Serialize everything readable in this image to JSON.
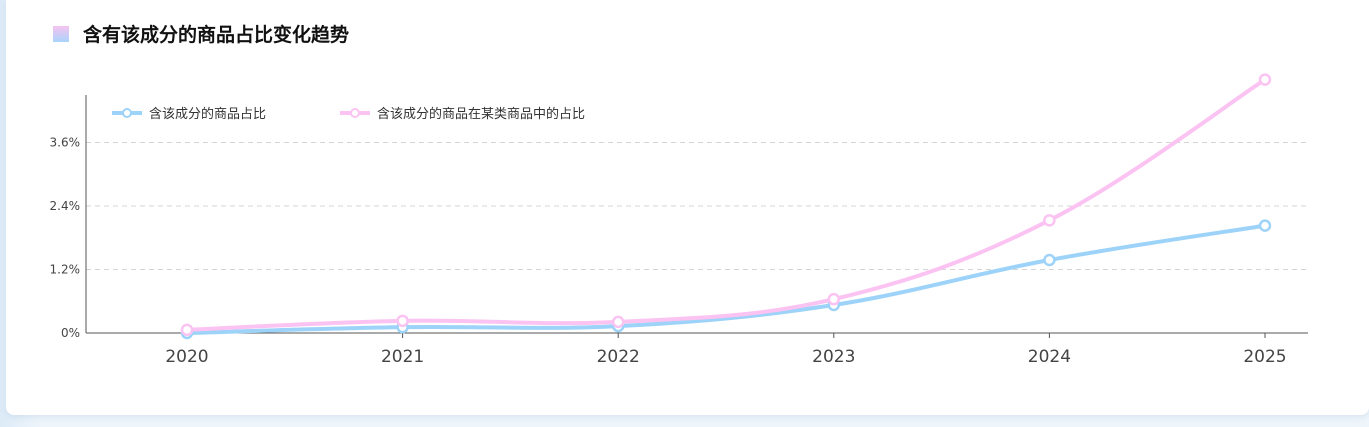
{
  "title": "含有该成分的商品占比变化趋势",
  "chart_data": {
    "type": "line",
    "smooth": true,
    "title": "含有该成分的商品占比变化趋势",
    "categories": [
      "2020",
      "2021",
      "2022",
      "2023",
      "2024",
      "2025"
    ],
    "y_ticks": [
      "0%",
      "1.2%",
      "2.4%",
      "3.6%"
    ],
    "y_tick_values": [
      0,
      1.2,
      2.4,
      3.6
    ],
    "ylim": [
      0,
      4.5
    ],
    "y_unit": "%",
    "grid": "horizontal dashed",
    "legend_position": "top-left",
    "series": [
      {
        "name": "含该成分的商品占比",
        "color": "#9dd3f9",
        "values": [
          0.0,
          0.11,
          0.13,
          0.53,
          1.38,
          2.03
        ]
      },
      {
        "name": "含该成分的商品在某类商品中的占比",
        "color": "#fbc3f2",
        "values": [
          0.06,
          0.23,
          0.21,
          0.64,
          2.13,
          4.79
        ]
      }
    ]
  }
}
